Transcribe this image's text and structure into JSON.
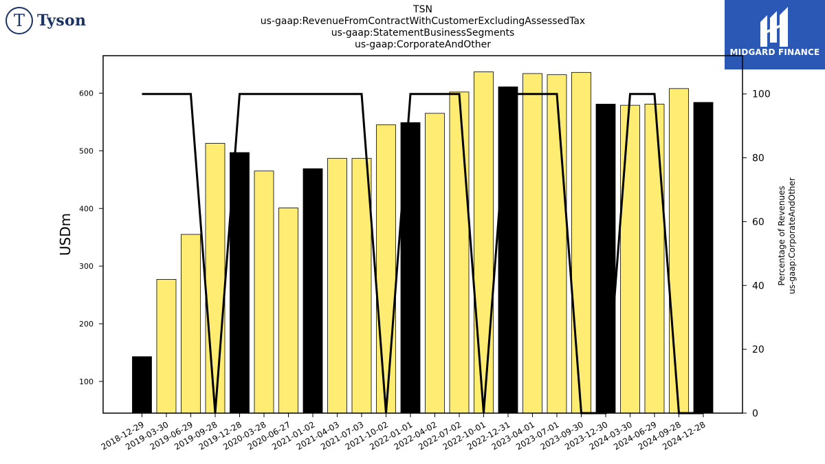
{
  "brand": {
    "left_logo_text": "Tyson",
    "right_logo_text": "MIDGARD FINANCE",
    "right_logo_color": "#2b57b5"
  },
  "chart_data": {
    "type": "bar",
    "title_lines": [
      "TSN",
      "us-gaap:RevenueFromContractWithCustomerExcludingAssessedTax",
      "us-gaap:StatementBusinessSegments",
      "us-gaap:CorporateAndOther"
    ],
    "ylabel": "USDm",
    "y2label_lines": [
      "Percentage of Revenues",
      "us-gaap:CorporateAndOther"
    ],
    "ylim": [
      45,
      665
    ],
    "y2lim": [
      0,
      112
    ],
    "yticks": [
      100,
      200,
      300,
      400,
      500,
      600
    ],
    "y2ticks": [
      0,
      20,
      40,
      60,
      80,
      100
    ],
    "categories": [
      "2018-12-29",
      "2019-03-30",
      "2019-06-29",
      "2019-09-28",
      "2019-12-28",
      "2020-03-28",
      "2020-06-27",
      "2021-01-02",
      "2021-04-03",
      "2021-07-03",
      "2021-10-02",
      "2022-01-01",
      "2022-04-02",
      "2022-07-02",
      "2022-10-01",
      "2022-12-31",
      "2023-04-01",
      "2023-07-01",
      "2023-09-30",
      "2023-12-30",
      "2024-03-30",
      "2024-06-29",
      "2024-09-28",
      "2024-12-28"
    ],
    "values": [
      143,
      277,
      355,
      513,
      497,
      465,
      401,
      469,
      487,
      487,
      545,
      549,
      565,
      602,
      637,
      611,
      634,
      632,
      636,
      581,
      579,
      581,
      608,
      584
    ],
    "bar_colors": [
      "#000000",
      "#ffec73",
      "#ffec73",
      "#ffec73",
      "#000000",
      "#ffec73",
      "#ffec73",
      "#000000",
      "#ffec73",
      "#ffec73",
      "#ffec73",
      "#000000",
      "#ffec73",
      "#ffec73",
      "#ffec73",
      "#000000",
      "#ffec73",
      "#ffec73",
      "#ffec73",
      "#000000",
      "#ffec73",
      "#ffec73",
      "#ffec73",
      "#000000"
    ],
    "percentage_series": {
      "values": [
        100,
        100,
        100,
        0,
        100,
        100,
        100,
        100,
        100,
        100,
        0,
        100,
        100,
        100,
        0,
        100,
        100,
        100,
        0,
        0,
        100,
        100,
        0,
        0
      ],
      "color": "#000000"
    },
    "grid": false,
    "legend": "none"
  }
}
